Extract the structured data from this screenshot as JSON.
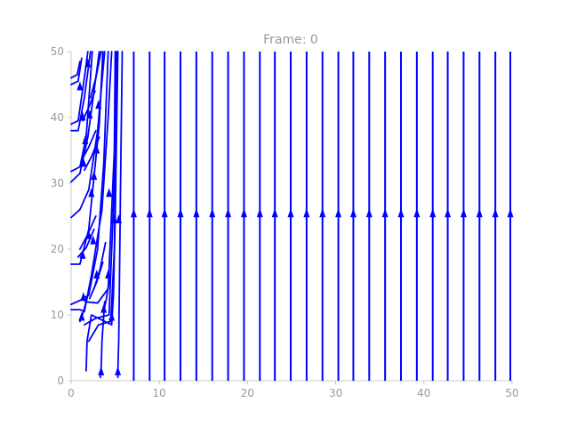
{
  "chart_data": {
    "type": "streamplot",
    "title": "Frame: 0",
    "xlabel": "",
    "ylabel": "",
    "xlim": [
      0,
      50
    ],
    "ylim": [
      0,
      50
    ],
    "x_ticks": [
      0,
      10,
      20,
      30,
      40,
      50
    ],
    "y_ticks": [
      0,
      10,
      20,
      30,
      40,
      50
    ],
    "grid": false,
    "color": "#0000ff",
    "vertical_streamlines_x": [
      7.1,
      8.9,
      10.6,
      12.4,
      14.2,
      16.0,
      17.8,
      19.6,
      21.4,
      23.1,
      24.9,
      26.7,
      28.5,
      30.3,
      32.0,
      33.8,
      35.6,
      37.4,
      39.2,
      41.0,
      42.7,
      44.5,
      46.3,
      48.1,
      49.8
    ],
    "vertical_arrow_y": 25.5,
    "curved_streamlines": [
      [
        [
          1.7,
          1.5
        ],
        [
          1.8,
          6
        ],
        [
          2.3,
          10
        ],
        [
          4.6,
          8.5
        ],
        [
          4.8,
          13
        ],
        [
          5.0,
          25
        ],
        [
          5.3,
          50
        ]
      ],
      [
        [
          2.0,
          6.0
        ],
        [
          3.1,
          8.5
        ],
        [
          4.5,
          9.0
        ],
        [
          4.9,
          20
        ],
        [
          5.2,
          50
        ]
      ],
      [
        [
          1.5,
          8.5
        ],
        [
          2.8,
          9.5
        ],
        [
          4.3,
          10.0
        ],
        [
          4.9,
          30
        ],
        [
          5.1,
          50
        ]
      ],
      [
        [
          1.6,
          12.0
        ],
        [
          3.0,
          11.8
        ],
        [
          4.2,
          14
        ],
        [
          4.9,
          35
        ],
        [
          5.0,
          50
        ]
      ],
      [
        [
          3.3,
          0.5
        ],
        [
          3.4,
          1.5
        ],
        [
          3.5,
          6.0
        ],
        [
          3.8,
          12
        ]
      ],
      [
        [
          5.3,
          0.5
        ],
        [
          5.3,
          1.5
        ],
        [
          5.4,
          6.5
        ],
        [
          5.6,
          30
        ],
        [
          5.8,
          50
        ]
      ],
      [
        [
          0.0,
          10.8
        ],
        [
          1.0,
          10.8
        ],
        [
          1.5,
          10.5
        ],
        [
          2.3,
          16
        ],
        [
          3.5,
          26
        ],
        [
          4.2,
          40
        ],
        [
          4.6,
          50
        ]
      ],
      [
        [
          0.0,
          11.6
        ],
        [
          1.0,
          12.2
        ],
        [
          2.0,
          13
        ],
        [
          3.0,
          20
        ],
        [
          3.7,
          33
        ],
        [
          4.2,
          50
        ]
      ],
      [
        [
          0.0,
          17.7
        ],
        [
          1.0,
          17.7
        ],
        [
          2.0,
          23
        ],
        [
          3.2,
          39
        ],
        [
          3.6,
          50
        ]
      ],
      [
        [
          0.0,
          24.8
        ],
        [
          1.0,
          26
        ],
        [
          2.0,
          29
        ],
        [
          3.0,
          38
        ],
        [
          3.8,
          50
        ]
      ],
      [
        [
          0.0,
          30.2
        ],
        [
          1.0,
          31.5
        ],
        [
          1.9,
          37
        ],
        [
          3.2,
          50
        ]
      ],
      [
        [
          0.0,
          31.8
        ],
        [
          1.0,
          32.5
        ],
        [
          1.7,
          37
        ],
        [
          2.4,
          50
        ]
      ],
      [
        [
          0.0,
          38.0
        ],
        [
          0.8,
          38.0
        ],
        [
          1.5,
          43
        ],
        [
          2.2,
          50
        ]
      ],
      [
        [
          0.0,
          39.0
        ],
        [
          0.8,
          39.5
        ],
        [
          1.5,
          46
        ],
        [
          1.9,
          50
        ]
      ],
      [
        [
          0.0,
          45.0
        ],
        [
          0.8,
          45.5
        ],
        [
          1.2,
          49
        ]
      ],
      [
        [
          0.0,
          46.0
        ],
        [
          0.7,
          46.5
        ],
        [
          1.0,
          48.5
        ]
      ],
      [
        [
          1.0,
          20.0
        ],
        [
          1.8,
          22.0
        ],
        [
          2.8,
          25.0
        ]
      ],
      [
        [
          0.8,
          18.8
        ],
        [
          1.7,
          20.2
        ],
        [
          2.6,
          23.0
        ]
      ],
      [
        [
          1.5,
          32.0
        ],
        [
          2.3,
          34.0
        ],
        [
          3.2,
          37.0
        ]
      ],
      [
        [
          1.2,
          33.5
        ],
        [
          2.0,
          35.5
        ],
        [
          2.8,
          38.0
        ]
      ],
      [
        [
          2.2,
          43.0
        ],
        [
          2.8,
          46.0
        ],
        [
          3.4,
          50
        ]
      ],
      [
        [
          2.6,
          14.0
        ],
        [
          3.3,
          17.0
        ],
        [
          3.9,
          21.0
        ]
      ],
      [
        [
          2.1,
          12.5
        ],
        [
          2.9,
          15.0
        ],
        [
          3.6,
          18.0
        ]
      ],
      [
        [
          3.7,
          10.5
        ],
        [
          4.0,
          12.5
        ],
        [
          4.4,
          16.0
        ]
      ],
      [
        [
          1.3,
          39.5
        ],
        [
          2.0,
          41.5
        ],
        [
          2.7,
          44.0
        ]
      ],
      [
        [
          1.0,
          9.0
        ],
        [
          1.4,
          10.5
        ],
        [
          1.9,
          13.0
        ]
      ]
    ],
    "curved_arrow_points": [
      [
        1.2,
        9.8
      ],
      [
        1.4,
        12.8
      ],
      [
        1.3,
        19.2
      ],
      [
        2.0,
        22.2
      ],
      [
        1.4,
        33.2
      ],
      [
        1.3,
        40.2
      ],
      [
        1.6,
        36.6
      ],
      [
        1.0,
        44.8
      ],
      [
        2.9,
        35.2
      ],
      [
        2.5,
        21.4
      ],
      [
        2.9,
        16.2
      ],
      [
        3.7,
        11.0
      ],
      [
        1.9,
        48.3
      ],
      [
        3.1,
        42.0
      ],
      [
        4.2,
        16.2
      ],
      [
        4.6,
        9.8
      ],
      [
        2.3,
        28.6
      ],
      [
        4.3,
        28.6
      ],
      [
        4.9,
        24.6
      ],
      [
        5.4,
        24.6
      ],
      [
        3.4,
        1.5
      ],
      [
        5.3,
        1.5
      ],
      [
        2.1,
        40.5
      ],
      [
        2.6,
        31.2
      ]
    ]
  }
}
